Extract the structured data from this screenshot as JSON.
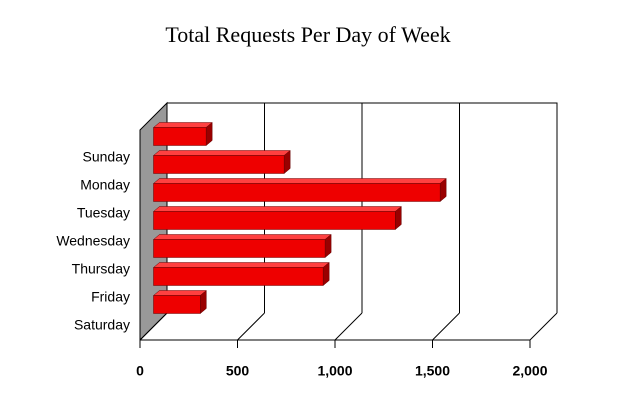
{
  "chart_data": {
    "type": "bar",
    "orientation": "horizontal",
    "title": "Total Requests Per Day of Week",
    "categories": [
      "Sunday",
      "Monday",
      "Tuesday",
      "Wednesday",
      "Thursday",
      "Friday",
      "Saturday"
    ],
    "values": [
      270,
      670,
      1470,
      1240,
      880,
      870,
      240
    ],
    "color": "#ee0000",
    "xlim": [
      0,
      2000
    ],
    "xticks": [
      0,
      500,
      {
        "value": 1000,
        "label": "1,000"
      },
      {
        "value": 1500,
        "label": "1,500"
      },
      {
        "value": 2000,
        "label": "2,000"
      }
    ],
    "grid": true
  }
}
